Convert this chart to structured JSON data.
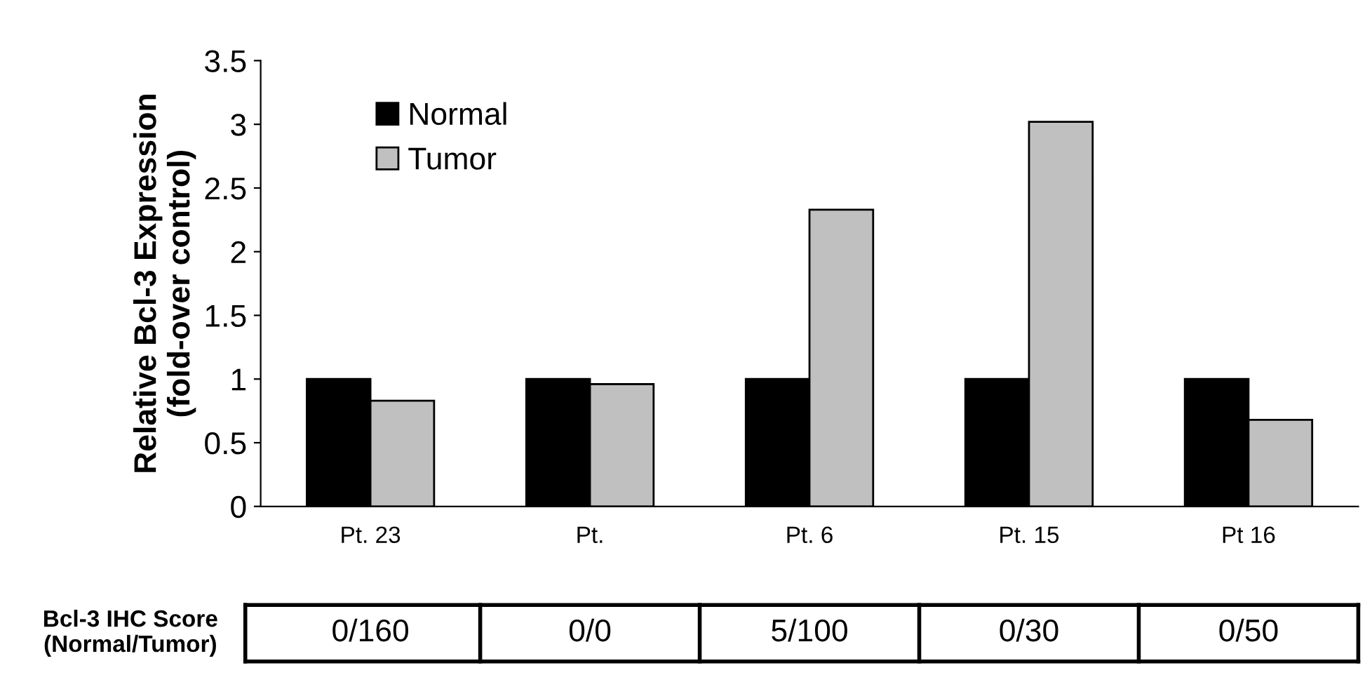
{
  "chart_data": {
    "type": "bar",
    "ylabel": "Relative Bcl-3 Expression\n(fold-over control)",
    "categories": [
      "Pt. 23",
      "Pt.",
      "Pt. 6",
      "Pt. 15",
      "Pt 16"
    ],
    "series": [
      {
        "name": "Normal",
        "color": "#000000",
        "values": [
          1.0,
          1.0,
          1.0,
          1.0,
          1.0
        ]
      },
      {
        "name": "Tumor",
        "color": "#c0c0c0",
        "values": [
          0.83,
          0.96,
          2.33,
          3.02,
          0.68
        ]
      }
    ],
    "ylim": [
      0,
      3.5
    ],
    "yticks": [
      0,
      0.5,
      1,
      1.5,
      2,
      2.5,
      3,
      3.5
    ],
    "grid": false,
    "legend": "top left",
    "annotations": [
      "Bcl-3 IHC Score\n(Normal/Tumor)",
      "0/160",
      "0/0",
      "5/100",
      "0/30",
      "0/50"
    ]
  }
}
